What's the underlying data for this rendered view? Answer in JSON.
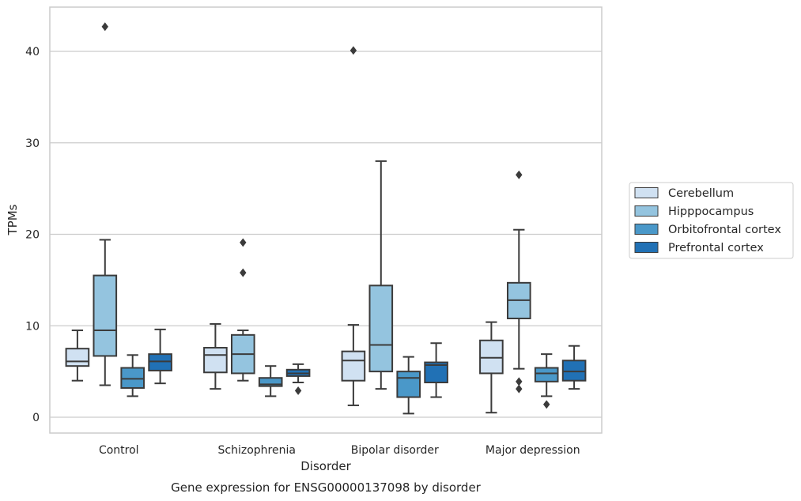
{
  "chart_data": {
    "type": "box",
    "title": "",
    "caption": "Gene expression for ENSG00000137098 by disorder",
    "xlabel": "Disorder",
    "ylabel": "TPMs",
    "ylim": [
      -1.7,
      44.9
    ],
    "yticks": [
      0,
      10,
      20,
      30,
      40
    ],
    "grid": "horizontal",
    "legend_position": "right",
    "categories": [
      "Control",
      "Schizophrenia",
      "Bipolar disorder",
      "Major depression"
    ],
    "series": [
      {
        "name": "Cerebellum",
        "color": "#d0e1f2",
        "boxes": [
          {
            "whisker_low": 4.0,
            "q1": 5.6,
            "median": 6.1,
            "q3": 7.5,
            "whisker_high": 9.5,
            "outliers": []
          },
          {
            "whisker_low": 3.1,
            "q1": 4.9,
            "median": 6.8,
            "q3": 7.6,
            "whisker_high": 10.2,
            "outliers": []
          },
          {
            "whisker_low": 1.3,
            "q1": 4.0,
            "median": 6.2,
            "q3": 7.2,
            "whisker_high": 10.1,
            "outliers": [
              40.1
            ]
          },
          {
            "whisker_low": 0.5,
            "q1": 4.8,
            "median": 6.5,
            "q3": 8.4,
            "whisker_high": 10.4,
            "outliers": []
          }
        ]
      },
      {
        "name": "Hipppocampus",
        "color": "#94c4df",
        "boxes": [
          {
            "whisker_low": 3.5,
            "q1": 6.7,
            "median": 9.5,
            "q3": 15.5,
            "whisker_high": 19.4,
            "outliers": [
              42.7
            ]
          },
          {
            "whisker_low": 4.0,
            "q1": 4.8,
            "median": 6.9,
            "q3": 9.0,
            "whisker_high": 9.5,
            "outliers": [
              19.1,
              15.8
            ]
          },
          {
            "whisker_low": 3.1,
            "q1": 5.0,
            "median": 7.9,
            "q3": 14.4,
            "whisker_high": 28.0,
            "outliers": []
          },
          {
            "whisker_low": 5.3,
            "q1": 10.8,
            "median": 12.8,
            "q3": 14.7,
            "whisker_high": 20.5,
            "outliers": [
              26.5,
              3.9,
              3.1
            ]
          }
        ]
      },
      {
        "name": "Orbitofrontal cortex",
        "color": "#4a98c9",
        "boxes": [
          {
            "whisker_low": 2.3,
            "q1": 3.2,
            "median": 4.2,
            "q3": 5.4,
            "whisker_high": 6.8,
            "outliers": []
          },
          {
            "whisker_low": 2.3,
            "q1": 3.4,
            "median": 3.6,
            "q3": 4.3,
            "whisker_high": 5.6,
            "outliers": []
          },
          {
            "whisker_low": 0.4,
            "q1": 2.2,
            "median": 4.3,
            "q3": 5.0,
            "whisker_high": 6.6,
            "outliers": []
          },
          {
            "whisker_low": 2.3,
            "q1": 3.9,
            "median": 4.8,
            "q3": 5.4,
            "whisker_high": 6.9,
            "outliers": [
              1.4
            ]
          }
        ]
      },
      {
        "name": "Prefrontal cortex",
        "color": "#2171b5",
        "boxes": [
          {
            "whisker_low": 3.7,
            "q1": 5.1,
            "median": 6.1,
            "q3": 6.9,
            "whisker_high": 9.6,
            "outliers": []
          },
          {
            "whisker_low": 3.8,
            "q1": 4.5,
            "median": 4.8,
            "q3": 5.2,
            "whisker_high": 5.8,
            "outliers": [
              2.9
            ]
          },
          {
            "whisker_low": 2.2,
            "q1": 3.8,
            "median": 5.7,
            "q3": 6.0,
            "whisker_high": 8.1,
            "outliers": []
          },
          {
            "whisker_low": 3.1,
            "q1": 4.0,
            "median": 5.0,
            "q3": 6.2,
            "whisker_high": 7.8,
            "outliers": []
          }
        ]
      }
    ]
  }
}
